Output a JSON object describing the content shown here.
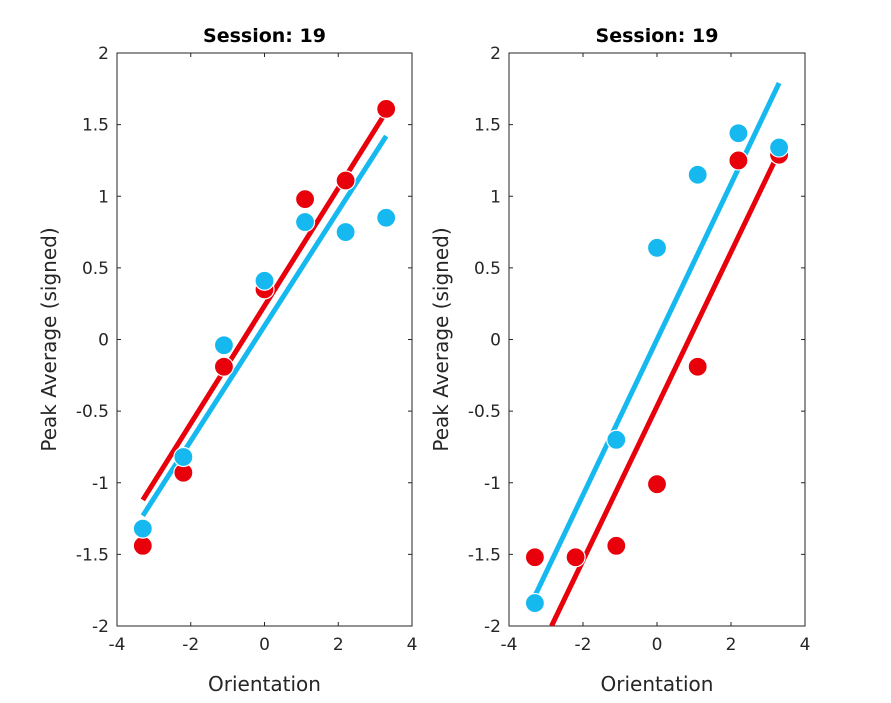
{
  "chart_data": [
    {
      "type": "scatter",
      "title": "Session: 19",
      "xlabel": "Orientation",
      "ylabel": "Peak Average (signed)",
      "xlim": [
        -4,
        4
      ],
      "ylim": [
        -2,
        2
      ],
      "xticks": [
        -4,
        -2,
        0,
        2,
        4
      ],
      "xtick_labels": [
        "-4",
        "-2",
        "0",
        "2",
        "4"
      ],
      "yticks": [
        -2,
        -1.5,
        -1,
        -0.5,
        0,
        0.5,
        1,
        1.5,
        2
      ],
      "ytick_labels": [
        "-2",
        "-1.5",
        "-1",
        "-0.5",
        "0",
        "0.5",
        "1",
        "1.5",
        "2"
      ],
      "grid": false,
      "series": [
        {
          "color": "#e8000b",
          "points": [
            [
              -3.3,
              -1.44
            ],
            [
              -2.2,
              -0.93
            ],
            [
              -1.1,
              -0.19
            ],
            [
              0,
              0.35
            ],
            [
              1.1,
              0.98
            ],
            [
              2.2,
              1.11
            ],
            [
              3.3,
              1.61
            ]
          ],
          "fit": [
            [
              -3.3,
              -1.12
            ],
            [
              3.3,
              1.59
            ]
          ]
        },
        {
          "color": "#16b9ef",
          "points": [
            [
              -3.3,
              -1.32
            ],
            [
              -2.2,
              -0.82
            ],
            [
              -1.1,
              -0.04
            ],
            [
              0,
              0.41
            ],
            [
              1.1,
              0.82
            ],
            [
              2.2,
              0.75
            ],
            [
              3.3,
              0.85
            ]
          ],
          "fit": [
            [
              -3.3,
              -1.23
            ],
            [
              3.3,
              1.42
            ]
          ]
        }
      ]
    },
    {
      "type": "scatter",
      "title": "Session: 19",
      "xlabel": "Orientation",
      "ylabel": "Peak Average (signed)",
      "xlim": [
        -4,
        4
      ],
      "ylim": [
        -2,
        2
      ],
      "xticks": [
        -4,
        -2,
        0,
        2,
        4
      ],
      "xtick_labels": [
        "-4",
        "-2",
        "0",
        "2",
        "4"
      ],
      "yticks": [
        -2,
        -1.5,
        -1,
        -0.5,
        0,
        0.5,
        1,
        1.5,
        2
      ],
      "ytick_labels": [
        "-2",
        "-1.5",
        "-1",
        "-0.5",
        "0",
        "0.5",
        "1",
        "1.5",
        "2"
      ],
      "grid": false,
      "series": [
        {
          "color": "#e8000b",
          "points": [
            [
              -3.3,
              -1.52
            ],
            [
              -2.2,
              -1.52
            ],
            [
              -1.1,
              -1.44
            ],
            [
              0,
              -1.01
            ],
            [
              1.1,
              -0.19
            ],
            [
              2.2,
              1.25
            ],
            [
              3.3,
              1.29
            ]
          ],
          "fit": [
            [
              -2.85,
              -2.0
            ],
            [
              3.3,
              1.31
            ]
          ]
        },
        {
          "color": "#16b9ef",
          "points": [
            [
              -3.3,
              -1.84
            ],
            [
              -1.1,
              -0.7
            ],
            [
              0,
              0.64
            ],
            [
              1.1,
              1.15
            ],
            [
              2.2,
              1.44
            ],
            [
              3.3,
              1.34
            ]
          ],
          "fit": [
            [
              -3.3,
              -1.79
            ],
            [
              3.3,
              1.79
            ]
          ]
        }
      ]
    }
  ]
}
